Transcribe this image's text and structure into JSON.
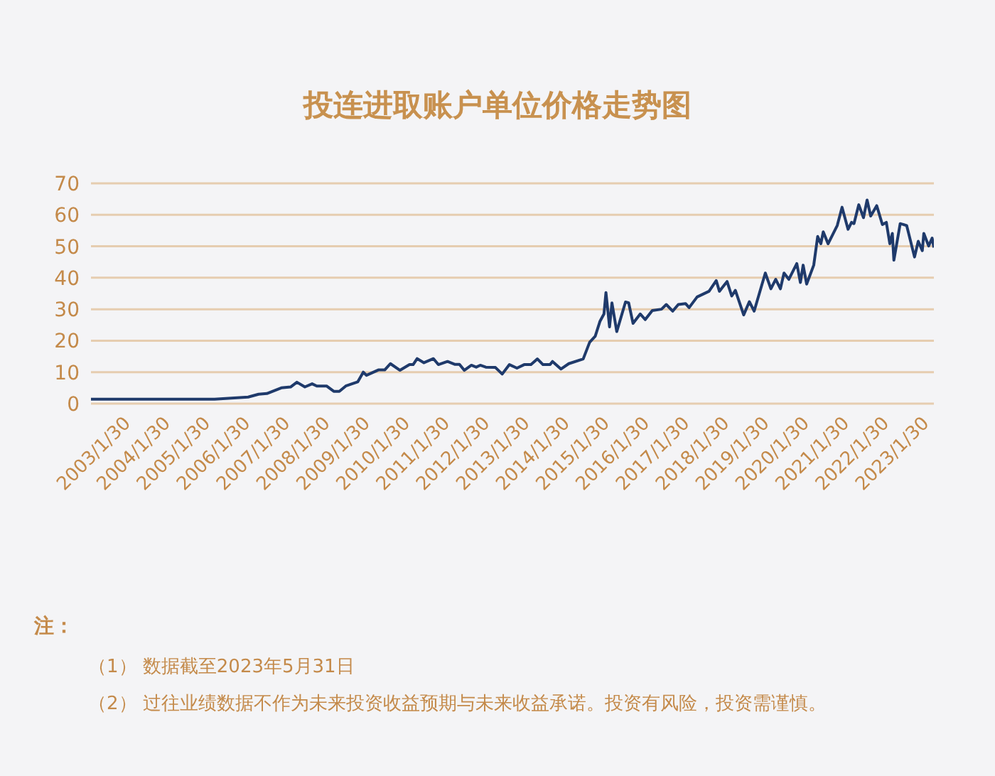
{
  "chart_data": {
    "type": "line",
    "title": "投连进取账户单位价格走势图",
    "x": [
      "2002-04-20",
      "2005-05-25",
      "2006-03-28",
      "2006-07-01",
      "2006-09-15",
      "2007-01-25",
      "2007-04-20",
      "2007-06-17",
      "2007-08-29",
      "2007-11-03",
      "2007-12-16",
      "2008-03-14",
      "2008-05-19",
      "2008-07-09",
      "2008-09-06",
      "2008-12-24",
      "2009-02-13",
      "2009-03-14",
      "2009-07-01",
      "2009-08-28",
      "2009-10-19",
      "2010-01-15",
      "2010-04-12",
      "2010-05-15",
      "2010-06-21",
      "2010-08-22",
      "2010-11-17",
      "2011-01-01",
      "2011-03-26",
      "2011-05-30",
      "2011-07-13",
      "2011-08-26",
      "2011-10-30",
      "2011-12-13",
      "2012-01-19",
      "2012-03-10",
      "2012-06-06",
      "2012-08-07",
      "2012-10-12",
      "2012-12-20",
      "2013-02-24",
      "2013-04-27",
      "2013-06-25",
      "2013-08-15",
      "2013-10-19",
      "2013-11-10",
      "2014-01-26",
      "2014-04-08",
      "2014-08-18",
      "2014-10-16",
      "2014-12-06",
      "2015-01-19",
      "2015-02-24",
      "2015-03-14",
      "2015-04-16",
      "2015-05-08",
      "2015-06-21",
      "2015-09-09",
      "2015-10-08",
      "2015-11-17",
      "2016-01-22",
      "2016-03-07",
      "2016-05-11",
      "2016-08-03",
      "2016-09-16",
      "2016-11-14",
      "2017-01-04",
      "2017-03-11",
      "2017-04-13",
      "2017-06-25",
      "2017-10-12",
      "2017-12-17",
      "2018-01-15",
      "2018-03-26",
      "2018-05-08",
      "2018-06-10",
      "2018-08-25",
      "2018-10-16",
      "2018-11-29",
      "2019-03-11",
      "2019-05-01",
      "2019-06-14",
      "2019-07-27",
      "2019-08-29",
      "2019-10-12",
      "2019-12-24",
      "2020-01-26",
      "2020-02-20",
      "2020-03-23",
      "2020-05-27",
      "2020-07-02",
      "2020-07-31",
      "2020-08-22",
      "2020-10-05",
      "2020-12-28",
      "2021-02-10",
      "2021-04-06",
      "2021-05-08",
      "2021-05-30",
      "2021-07-13",
      "2021-08-25",
      "2021-09-27",
      "2021-10-30",
      "2021-12-24",
      "2022-02-14",
      "2022-03-22",
      "2022-04-23",
      "2022-05-16",
      "2022-05-30",
      "2022-07-27",
      "2022-09-24",
      "2022-12-05",
      "2023-01-08",
      "2023-02-14",
      "2023-02-28",
      "2023-04-13",
      "2023-05-15",
      "2023-05-31"
    ],
    "series": [
      {
        "color": "#1f3a6b",
        "values": [
          1.4,
          1.4,
          2.1,
          3.0,
          3.2,
          5.0,
          5.3,
          6.8,
          5.3,
          6.3,
          5.6,
          5.6,
          3.9,
          3.9,
          5.6,
          6.9,
          10.0,
          9.0,
          10.7,
          10.7,
          12.7,
          10.6,
          12.4,
          12.4,
          14.3,
          13.0,
          14.3,
          12.4,
          13.4,
          12.5,
          12.5,
          10.6,
          12.2,
          11.6,
          12.2,
          11.6,
          11.5,
          9.4,
          12.4,
          11.3,
          12.4,
          12.4,
          14.2,
          12.4,
          12.4,
          13.4,
          11.0,
          12.7,
          14.2,
          19.5,
          21.4,
          26.2,
          28.5,
          35.3,
          24.4,
          32.0,
          22.9,
          32.3,
          32.0,
          25.5,
          28.5,
          26.7,
          29.6,
          30.0,
          31.5,
          29.4,
          31.5,
          31.8,
          30.5,
          33.9,
          35.7,
          39.1,
          35.7,
          38.8,
          34.2,
          36.0,
          28.2,
          32.4,
          29.4,
          41.5,
          36.5,
          39.5,
          36.5,
          41.5,
          39.5,
          44.5,
          38.5,
          44.0,
          38.0,
          44.0,
          53.1,
          50.8,
          54.6,
          50.8,
          56.6,
          62.4,
          55.4,
          57.6,
          57.2,
          63.2,
          59.1,
          64.7,
          59.6,
          62.9,
          56.9,
          57.6,
          50.8,
          54.1,
          45.6,
          57.2,
          56.6,
          46.6,
          51.6,
          48.6,
          54.1,
          50.1,
          52.6,
          49.6
        ]
      }
    ],
    "xlim": [
      "2002-04-20",
      "2023-05-31"
    ],
    "xticks": [
      {
        "value": "2003-01-30",
        "label": "2003/1/30"
      },
      {
        "value": "2004-01-30",
        "label": "2004/1/30"
      },
      {
        "value": "2005-01-30",
        "label": "2005/1/30"
      },
      {
        "value": "2006-01-30",
        "label": "2006/1/30"
      },
      {
        "value": "2007-01-30",
        "label": "2007/1/30"
      },
      {
        "value": "2008-01-30",
        "label": "2008/1/30"
      },
      {
        "value": "2009-01-30",
        "label": "2009/1/30"
      },
      {
        "value": "2010-01-30",
        "label": "2010/1/30"
      },
      {
        "value": "2011-01-30",
        "label": "2011/1/30"
      },
      {
        "value": "2012-01-30",
        "label": "2012/1/30"
      },
      {
        "value": "2013-01-30",
        "label": "2013/1/30"
      },
      {
        "value": "2014-01-30",
        "label": "2014/1/30"
      },
      {
        "value": "2015-01-30",
        "label": "2015/1/30"
      },
      {
        "value": "2016-01-30",
        "label": "2016/1/30"
      },
      {
        "value": "2017-01-30",
        "label": "2017/1/30"
      },
      {
        "value": "2018-01-30",
        "label": "2018/1/30"
      },
      {
        "value": "2019-01-30",
        "label": "2019/1/30"
      },
      {
        "value": "2020-01-30",
        "label": "2020/1/30"
      },
      {
        "value": "2021-01-30",
        "label": "2021/1/30"
      },
      {
        "value": "2022-01-30",
        "label": "2022/1/30"
      },
      {
        "value": "2023-01-30",
        "label": "2023/1/30"
      }
    ],
    "ylim": [
      0,
      70
    ],
    "yticks": [
      0,
      10,
      20,
      30,
      40,
      50,
      60,
      70
    ],
    "grid": "y",
    "marker": "none",
    "line_style": "solid",
    "annotations": [
      "注：",
      "（1） 数据截至2023年5月31日",
      "（2） 过往业绩数据不作为未来投资收益预期与未来收益承诺。投资有风险，投资需谨慎。"
    ]
  }
}
